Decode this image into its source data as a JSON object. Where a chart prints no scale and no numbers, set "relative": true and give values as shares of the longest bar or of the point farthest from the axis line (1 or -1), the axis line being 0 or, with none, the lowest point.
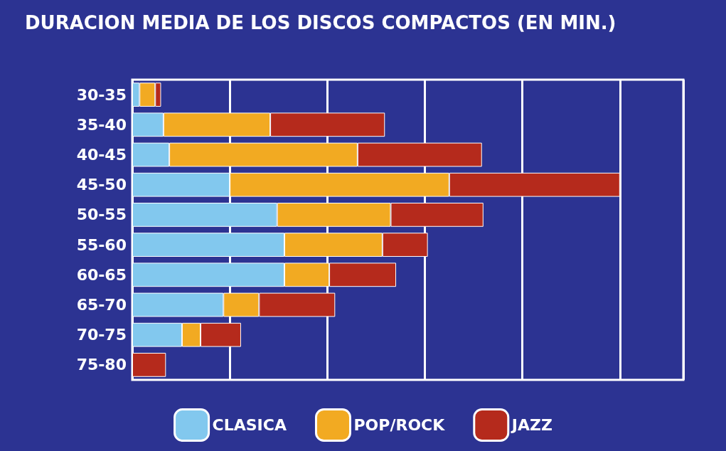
{
  "chart_data": {
    "type": "bar",
    "title": "DURACION MEDIA DE LOS DISCOS COMPACTOS (EN MIN.)",
    "orientation": "horizontal",
    "stacked": true,
    "relative": true,
    "grid": "x",
    "legend": "bottom",
    "categories": [
      "30-35",
      "35-40",
      "40-45",
      "45-50",
      "50-55",
      "55-60",
      "60-65",
      "65-70",
      "70-75",
      "75-80"
    ],
    "series": [
      {
        "name": "CLASICA",
        "color": "#82c8ee",
        "values": [
          0.015,
          0.064,
          0.076,
          0.2,
          0.297,
          0.312,
          0.312,
          0.187,
          0.102,
          0
        ]
      },
      {
        "name": "POP/ROCK",
        "color": "#f2aa22",
        "values": [
          0.032,
          0.219,
          0.386,
          0.45,
          0.233,
          0.201,
          0.092,
          0.073,
          0.038,
          0
        ]
      },
      {
        "name": "JAZZ",
        "color": "#b52a1c",
        "values": [
          0.012,
          0.235,
          0.255,
          0.35,
          0.19,
          0.093,
          0.137,
          0.156,
          0.083,
          0.069
        ]
      }
    ]
  }
}
